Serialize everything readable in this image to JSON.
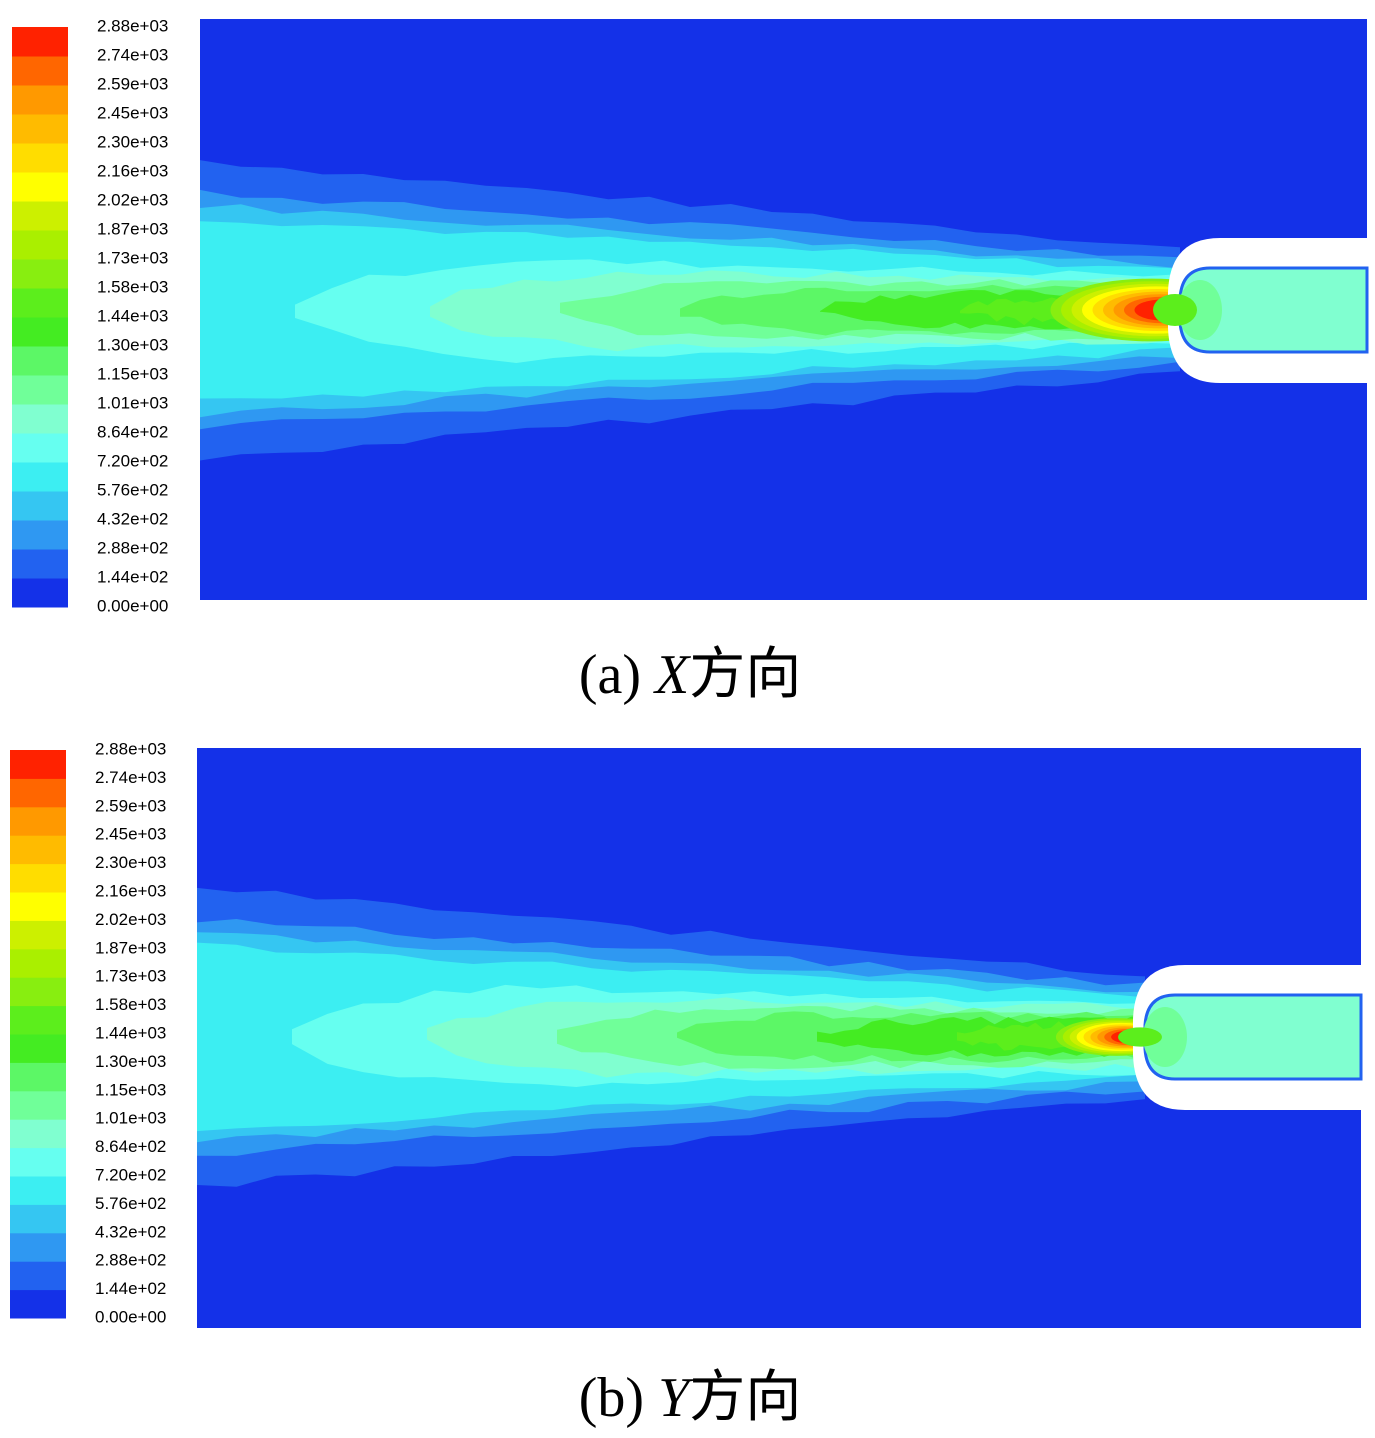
{
  "chart_data": [
    {
      "type": "contour",
      "caption_label": "(a)",
      "caption_var": "X",
      "caption_text": "方向",
      "colorbar_ticks": [
        {
          "value": 0,
          "label": "0.00e+00"
        },
        {
          "value": 144,
          "label": "1.44e+02"
        },
        {
          "value": 288,
          "label": "2.88e+02"
        },
        {
          "value": 432,
          "label": "4.32e+02"
        },
        {
          "value": 576,
          "label": "5.76e+02"
        },
        {
          "value": 720,
          "label": "7.20e+02"
        },
        {
          "value": 864,
          "label": "8.64e+02"
        },
        {
          "value": 1010,
          "label": "1.01e+03"
        },
        {
          "value": 1150,
          "label": "1.15e+03"
        },
        {
          "value": 1300,
          "label": "1.30e+03"
        },
        {
          "value": 1440,
          "label": "1.44e+03"
        },
        {
          "value": 1580,
          "label": "1.58e+03"
        },
        {
          "value": 1730,
          "label": "1.73e+03"
        },
        {
          "value": 1870,
          "label": "1.87e+03"
        },
        {
          "value": 2020,
          "label": "2.02e+03"
        },
        {
          "value": 2160,
          "label": "2.16e+03"
        },
        {
          "value": 2300,
          "label": "2.30e+03"
        },
        {
          "value": 2450,
          "label": "2.45e+03"
        },
        {
          "value": 2590,
          "label": "2.59e+03"
        },
        {
          "value": 2740,
          "label": "2.74e+03"
        },
        {
          "value": 2880,
          "label": "2.88e+03"
        }
      ],
      "colors": [
        "#1431e8",
        "#2262f0",
        "#2f98f2",
        "#35c6f2",
        "#3ceef2",
        "#66fff0",
        "#80ffd0",
        "#70ff99",
        "#5cf766",
        "#44ec22",
        "#5cee1c",
        "#88ee10",
        "#aaef00",
        "#ccf000",
        "#ffff00",
        "#ffdd00",
        "#ffbb00",
        "#ff9900",
        "#ff6600",
        "#ff2200"
      ]
    },
    {
      "type": "contour",
      "caption_label": "(b)",
      "caption_var": "Y",
      "caption_text": "方向",
      "colorbar_ticks": [
        {
          "value": 0,
          "label": "0.00e+00"
        },
        {
          "value": 144,
          "label": "1.44e+02"
        },
        {
          "value": 288,
          "label": "2.88e+02"
        },
        {
          "value": 432,
          "label": "4.32e+02"
        },
        {
          "value": 576,
          "label": "5.76e+02"
        },
        {
          "value": 720,
          "label": "7.20e+02"
        },
        {
          "value": 864,
          "label": "8.64e+02"
        },
        {
          "value": 1010,
          "label": "1.01e+03"
        },
        {
          "value": 1150,
          "label": "1.15e+03"
        },
        {
          "value": 1300,
          "label": "1.30e+03"
        },
        {
          "value": 1440,
          "label": "1.44e+03"
        },
        {
          "value": 1580,
          "label": "1.58e+03"
        },
        {
          "value": 1730,
          "label": "1.73e+03"
        },
        {
          "value": 1870,
          "label": "1.87e+03"
        },
        {
          "value": 2020,
          "label": "2.02e+03"
        },
        {
          "value": 2160,
          "label": "2.16e+03"
        },
        {
          "value": 2300,
          "label": "2.30e+03"
        },
        {
          "value": 2450,
          "label": "2.45e+03"
        },
        {
          "value": 2590,
          "label": "2.59e+03"
        },
        {
          "value": 2740,
          "label": "2.74e+03"
        },
        {
          "value": 2880,
          "label": "2.88e+03"
        }
      ],
      "colors": [
        "#1431e8",
        "#2262f0",
        "#2f98f2",
        "#35c6f2",
        "#3ceef2",
        "#66fff0",
        "#80ffd0",
        "#70ff99",
        "#5cf766",
        "#44ec22",
        "#5cee1c",
        "#88ee10",
        "#aaef00",
        "#ccf000",
        "#ffff00",
        "#ffdd00",
        "#ffbb00",
        "#ff9900",
        "#ff6600",
        "#ff2200"
      ]
    }
  ]
}
